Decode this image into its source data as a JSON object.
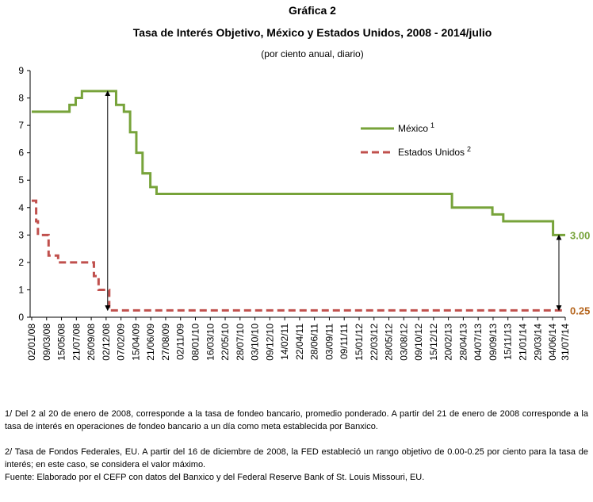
{
  "chart_data": {
    "type": "line",
    "step": "post",
    "title": "Gráfica 2",
    "subtitle": "Tasa de Interés Objetivo, México y Estados Unidos, 2008 - 2014/julio",
    "units": "(por ciento anual, diario)",
    "xlim": [
      "02/01/08",
      "31/07/14"
    ],
    "xticks": [
      "02/01/08",
      "09/03/08",
      "15/05/08",
      "21/07/08",
      "26/09/08",
      "02/12/08",
      "07/02/09",
      "15/04/09",
      "21/06/09",
      "27/08/09",
      "02/11/09",
      "08/01/10",
      "16/03/10",
      "22/05/10",
      "28/07/10",
      "03/10/10",
      "09/12/10",
      "14/02/11",
      "22/04/11",
      "28/06/11",
      "03/09/11",
      "09/11/11",
      "15/01/12",
      "22/03/12",
      "28/05/12",
      "03/08/12",
      "09/10/12",
      "15/12/12",
      "20/02/13",
      "28/04/13",
      "04/07/13",
      "09/09/13",
      "15/11/13",
      "21/01/14",
      "29/03/14",
      "04/06/14",
      "31/07/14"
    ],
    "ylim": [
      0,
      9
    ],
    "yticks": [
      0,
      1,
      2,
      3,
      4,
      5,
      6,
      7,
      8,
      9
    ],
    "grid": false,
    "legend": "upper right",
    "series": [
      {
        "name": "México",
        "note": "1",
        "color": "#77a33a",
        "dash": false,
        "x": [
          "02/01/08",
          "20/06/08",
          "18/07/08",
          "15/08/08",
          "16/01/09",
          "20/02/09",
          "20/03/09",
          "17/04/09",
          "15/05/09",
          "19/06/09",
          "17/07/09",
          "08/03/13",
          "06/09/13",
          "25/10/13",
          "06/06/14"
        ],
        "values": [
          7.5,
          7.75,
          8.0,
          8.25,
          7.75,
          7.5,
          6.75,
          6.0,
          5.25,
          4.75,
          4.5,
          4.0,
          3.75,
          3.5,
          3.0
        ],
        "value_labels": [
          null,
          null,
          null,
          null,
          null,
          null,
          null,
          null,
          null,
          null,
          null,
          null,
          null,
          null,
          "3.00"
        ],
        "label_color": "#77a33a"
      },
      {
        "name": "Estados Unidos",
        "note": "2",
        "color": "#c0504d",
        "dash": true,
        "x": [
          "02/01/08",
          "22/01/08",
          "30/01/08",
          "18/03/08",
          "30/04/08",
          "08/10/08",
          "29/10/08",
          "16/12/08"
        ],
        "values": [
          4.25,
          3.5,
          3.0,
          2.25,
          2.0,
          1.5,
          1.0,
          0.25
        ],
        "value_labels": [
          null,
          null,
          null,
          null,
          null,
          null,
          null,
          "0.25"
        ],
        "label_color": "#b5651d"
      }
    ]
  },
  "notes": [
    "1/ Del 2 al 20 de enero de 2008, corresponde a la tasa de fondeo bancario, promedio ponderado. A partir del 21 de enero de 2008 corresponde a la tasa de interés en operaciones de fondeo bancario a un día como meta establecida por Banxico.",
    "2/ Tasa de Fondos Federales, EU. A partir del 16 de diciembre de 2008, la FED estableció un rango objetivo de 0.00-0.25 por ciento para la tasa de interés; en este caso, se considera el valor máximo.",
    "Fuente: Elaborado por el CEFP con datos del Banxico y del Federal Reserve Bank of St. Louis Missouri, EU."
  ]
}
